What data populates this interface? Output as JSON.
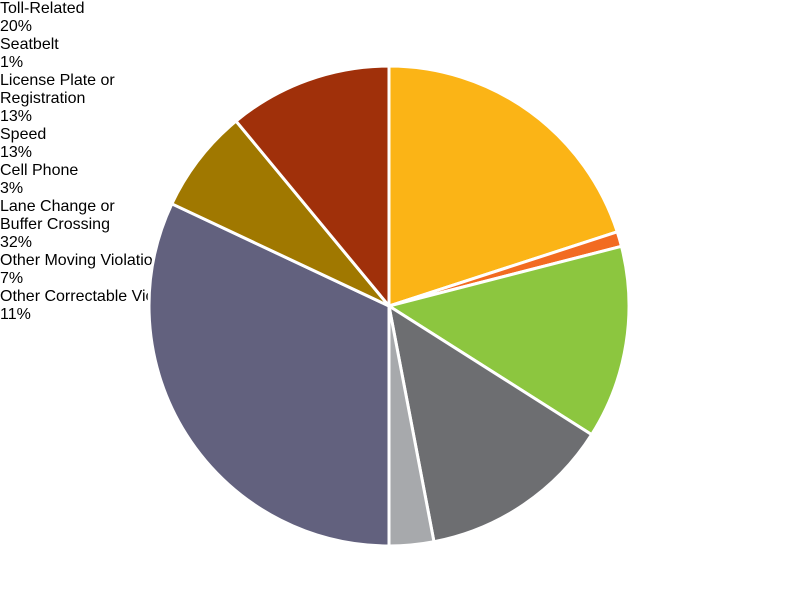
{
  "chart_data": {
    "type": "pie",
    "categories": [
      "Toll-Related",
      "Seatbelt",
      "License Plate or Registration",
      "Speed",
      "Cell Phone",
      "Lane Change or Buffer Crossing",
      "Other Moving Violation",
      "Other Correctable Violation"
    ],
    "values": [
      20,
      1,
      13,
      13,
      3,
      32,
      7,
      11
    ],
    "value_labels": [
      "20%",
      "1%",
      "13%",
      "13%",
      "3%",
      "32%",
      "7%",
      "11%"
    ],
    "colors": [
      "#fbb416",
      "#f26b21",
      "#8cc63f",
      "#6d6e71",
      "#a7a9ac",
      "#62617e",
      "#a07800",
      "#a0300a"
    ]
  }
}
